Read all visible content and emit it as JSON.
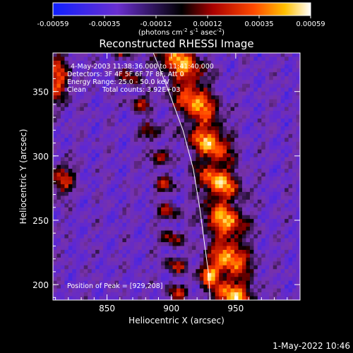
{
  "chart_data": {
    "type": "heatmap",
    "title": "Reconstructed RHESSI Image",
    "xlabel": "Heliocentric X (arcsec)",
    "ylabel": "Heliocentric Y (arcsec)",
    "xlim": [
      808,
      1000
    ],
    "ylim": [
      188,
      380
    ],
    "x_ticks": [
      850,
      900,
      950
    ],
    "y_ticks": [
      200,
      250,
      300,
      350
    ],
    "colorbar": {
      "min": -0.00059,
      "max": 0.00059,
      "ticks": [
        "-0.00059",
        "-0.00035",
        "-0.00012",
        "0.00012",
        "0.00035",
        "0.00059"
      ],
      "unit_prefix": "(photons cm",
      "unit_exp1": "-2",
      "unit_mid": " s",
      "unit_exp2": "-1",
      "unit_mid2": " asec",
      "unit_exp3": "-2",
      "unit_suffix": ")"
    },
    "annotations": {
      "time_range": "4-May-2003 11:38:36.000 to 11:41:40.000",
      "detectors": "Detectors: 3F 4F 5F 6F 7F 8F, Att 0",
      "energy": "Energy Range: 25.0 - 50.0 keV",
      "clean": "Clean",
      "counts": "Total counts: 3.92E+03",
      "peak_label": "Position of Peak = [929,208]"
    },
    "peak": [
      929,
      208
    ],
    "limb_arc": [
      [
        886,
        380
      ],
      [
        898,
        350
      ],
      [
        909,
        320
      ],
      [
        917,
        290
      ],
      [
        922,
        260
      ],
      [
        926,
        230
      ],
      [
        929,
        208
      ],
      [
        930,
        188
      ]
    ]
  },
  "footer_timestamp": "1-May-2022 10:46"
}
